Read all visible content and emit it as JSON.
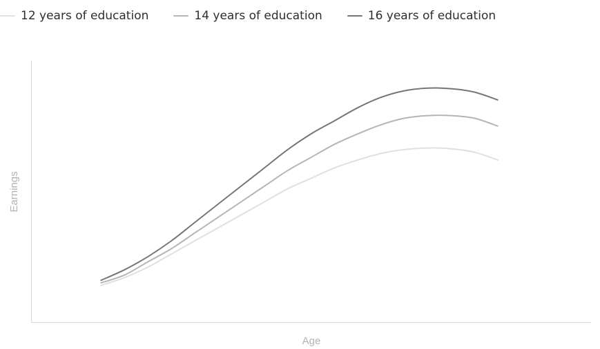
{
  "chart_data": {
    "type": "line",
    "title": "",
    "xlabel": "Age",
    "ylabel": "Earnings",
    "legend_position": "top-left",
    "grid": false,
    "x": [
      0,
      1,
      2,
      3,
      4,
      5,
      6,
      7,
      8,
      9,
      10,
      11,
      12,
      13,
      14,
      15,
      16,
      17
    ],
    "xlim": [
      -3,
      21
    ],
    "ylim": [
      0,
      100
    ],
    "series": [
      {
        "name": "12 years of education",
        "color": "#e0e0e0",
        "values": [
          14,
          17,
          21,
          26,
          31,
          36,
          41,
          46,
          51,
          55,
          59,
          62,
          64.5,
          66,
          66.6,
          66.3,
          65,
          62
        ]
      },
      {
        "name": "14 years of education",
        "color": "#b5b5b5",
        "values": [
          15,
          18,
          23,
          28,
          34,
          40,
          46,
          52,
          58,
          63,
          68,
          72,
          75.5,
          78,
          79,
          79,
          78,
          75
        ]
      },
      {
        "name": "16 years of education",
        "color": "#757575",
        "values": [
          16,
          20,
          25,
          31,
          38,
          45,
          52,
          59,
          66,
          72,
          77,
          82,
          86,
          88.5,
          89.5,
          89.3,
          88,
          85
        ]
      }
    ]
  }
}
